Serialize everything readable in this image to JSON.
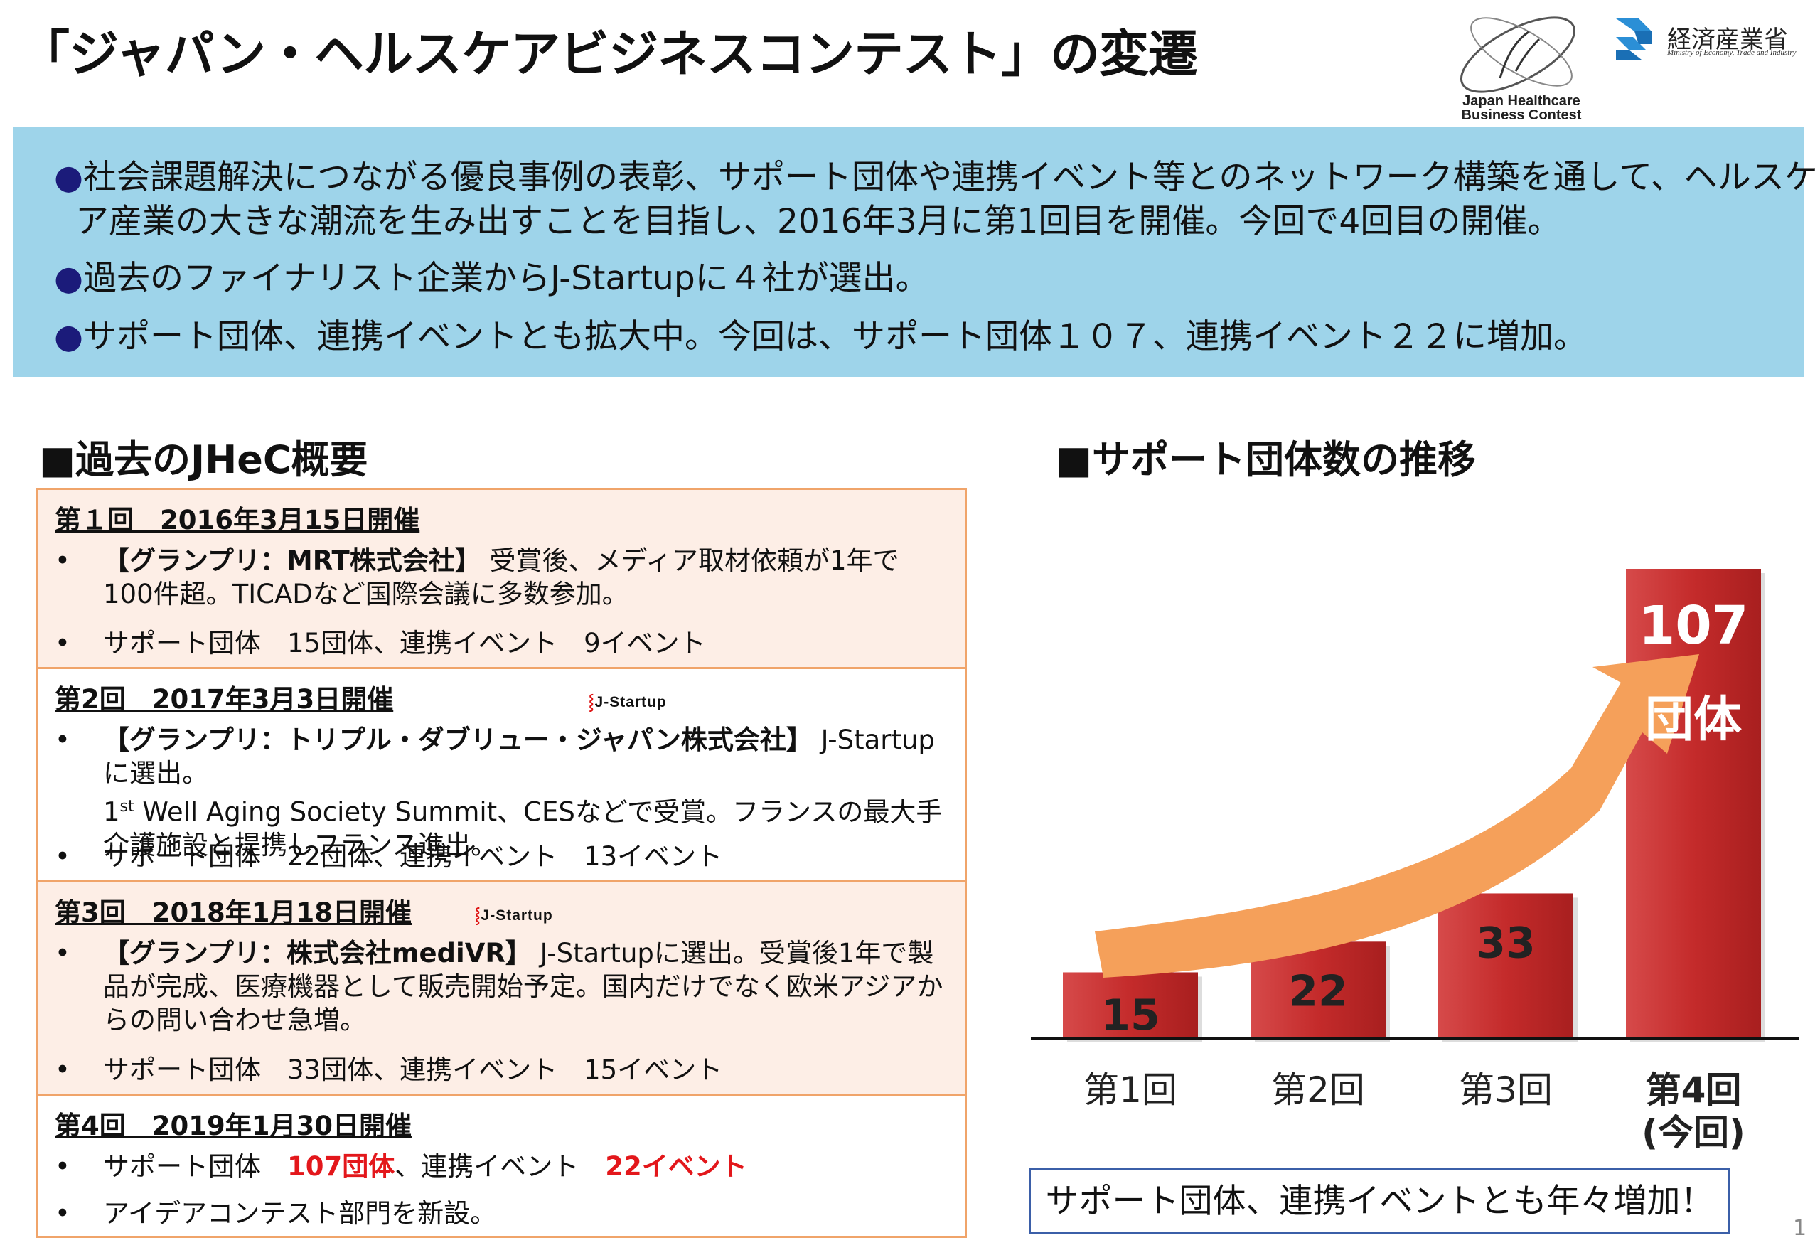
{
  "title": "「ジャパン・ヘルスケアビジネスコンテスト」の変遷",
  "logos": {
    "jhec_line1": "Japan Healthcare",
    "jhec_line2": "Business Contest",
    "meti_name": "経済産業省",
    "meti_sub": "Ministry of Economy, Trade and Industry"
  },
  "summary": {
    "bullet": "●",
    "line1a": "社会課題解決につながる優良事例の表彰、サポート団体や連携イベント等とのネットワーク構築を通して、ヘルスケ",
    "line1b": "ア産業の大きな潮流を生み出すことを目指し、2016年3月に第1回目を開催。今回で4回目の開催。",
    "line2": "過去のファイナリスト企業からJ-Startupに４社が選出。",
    "line3": "サポート団体、連携イベントとも拡大中。今回は、サポート団体１０７、連携イベント２２に増加。"
  },
  "history": {
    "heading": "■過去のJHeC概要",
    "bullet": "•",
    "jstartup_label": "J-Startup",
    "editions": [
      {
        "header": "第１回　2016年3月15日開催",
        "b1_bold": "【グランプリ：MRT株式会社】",
        "b1_text": "受賞後、メディア取材依頼が1年で100件超。TICADなど国際会議に多数参加。",
        "b2_text": "サポート団体　15団体、連携イベント　9イベント"
      },
      {
        "header": "第2回　2017年3月3日開催",
        "b1_bold": "【グランプリ：トリプル・ダブリュー・ジャパン株式会社】",
        "b1_text": "J-Startupに選出。",
        "b1_pre": "1",
        "b1_sup": "st",
        "b1_text2": " Well Aging Society Summit、CESなどで受賞。フランスの最大手介護施設と提携しフランス進出。",
        "b2_text": "サポート団体　22団体、連携イベント　13イベント"
      },
      {
        "header": "第3回　2018年1月18日開催",
        "b1_bold": "【グランプリ：株式会社mediVR】",
        "b1_text": "J-Startupに選出。受賞後1年で製品が完成、医療機器として販売開始予定。国内だけでなく欧米アジアからの問い合わせ急増。",
        "b2_text": "サポート団体　33団体、連携イベント　15イベント"
      },
      {
        "header": "第4回　2019年1月30日開催",
        "b1_pre": "サポート団体　",
        "b1_red1": "107団体",
        "b1_mid": "、連携イベント　",
        "b1_red2": "22イベント",
        "b2_text": "アイデアコンテスト部門を新設。"
      }
    ]
  },
  "chart_heading": "■サポート団体数の推移",
  "chart_data": {
    "type": "bar",
    "title": "サポート団体数の推移",
    "categories": [
      "第1回",
      "第2回",
      "第3回",
      "第4回"
    ],
    "category_sub": [
      "",
      "",
      "",
      "(今回)"
    ],
    "values": [
      15,
      22,
      33,
      107
    ],
    "value_labels": [
      "15",
      "22",
      "33",
      "107"
    ],
    "last_unit": "団体",
    "bar_color": "#c42b2b",
    "arrow_color": "#f5a05a",
    "grid": false,
    "legend": "none"
  },
  "callout": "サポート団体、連携イベントとも年々増加！",
  "page_number": "1"
}
